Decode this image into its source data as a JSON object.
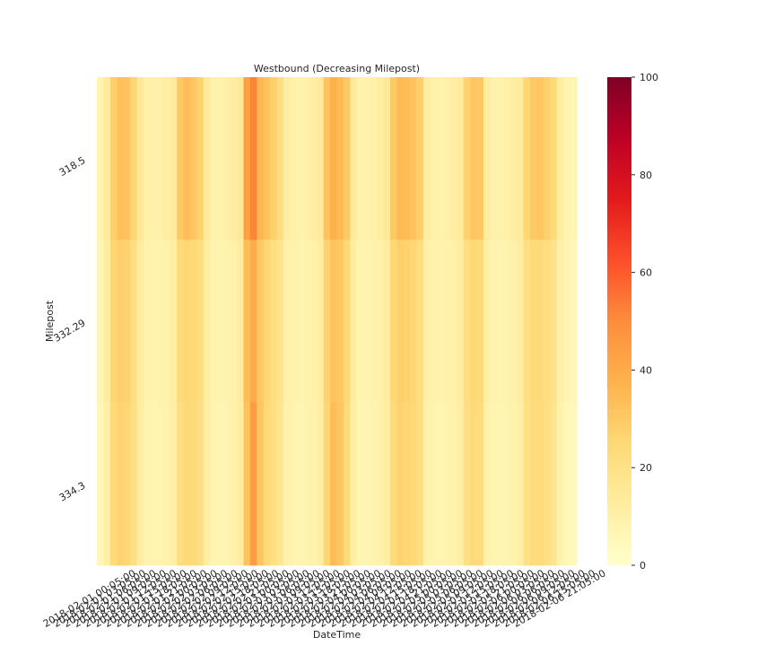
{
  "chart_data": {
    "type": "heatmap",
    "title": "Westbound (Decreasing Milepost)",
    "xlabel": "DateTime",
    "ylabel": "Milepost",
    "rows": [
      "318.5",
      "332.29",
      "334.3"
    ],
    "x_tick_labels": [
      "2018-02-01 00:05:00",
      "2018-02-01 03:05:00",
      "2018-02-01 06:05:00",
      "2018-02-01 09:05:00",
      "2018-02-01 12:05:00",
      "2018-02-01 15:05:00",
      "2018-02-01 18:05:00",
      "2018-02-01 21:05:00",
      "2018-02-02 00:05:00",
      "2018-02-02 03:05:00",
      "2018-02-02 06:05:00",
      "2018-02-02 09:05:00",
      "2018-02-02 12:05:00",
      "2018-02-02 15:05:00",
      "2018-02-02 18:05:00",
      "2018-02-02 21:05:00",
      "2018-02-03 00:05:00",
      "2018-02-03 03:05:00",
      "2018-02-03 06:05:00",
      "2018-02-03 09:05:00",
      "2018-02-03 12:05:00",
      "2018-02-03 15:05:00",
      "2018-02-03 18:05:00",
      "2018-02-03 21:05:00",
      "2018-02-04 00:05:00",
      "2018-02-04 03:05:00",
      "2018-02-04 06:05:00",
      "2018-02-04 09:05:00",
      "2018-02-04 12:05:00",
      "2018-02-04 15:05:00",
      "2018-02-04 18:05:00",
      "2018-02-04 21:05:00",
      "2018-02-05 00:05:00",
      "2018-02-05 03:05:00",
      "2018-02-05 06:05:00",
      "2018-02-05 09:05:00",
      "2018-02-05 12:05:00",
      "2018-02-05 15:05:00",
      "2018-02-05 18:05:00",
      "2018-02-05 21:05:00",
      "2018-02-06 00:05:00",
      "2018-02-06 03:05:00",
      "2018-02-06 06:05:00",
      "2018-02-06 09:05:00",
      "2018-02-06 12:05:00",
      "2018-02-06 15:05:00",
      "2018-02-06 21:05:00"
    ],
    "colorbar": {
      "min": 0,
      "max": 100,
      "ticks": [
        0,
        20,
        40,
        60,
        80,
        100
      ],
      "colormap": "YlOrRd"
    },
    "num_columns": 72,
    "values": [
      [
        8,
        14,
        28,
        33,
        32,
        26,
        15,
        10,
        9,
        10,
        12,
        14,
        30,
        34,
        31,
        27,
        14,
        9,
        9,
        11,
        12,
        15,
        44,
        52,
        36,
        32,
        28,
        22,
        12,
        10,
        9,
        10,
        12,
        14,
        32,
        38,
        35,
        30,
        14,
        9,
        9,
        10,
        12,
        15,
        30,
        35,
        34,
        32,
        28,
        12,
        10,
        9,
        10,
        12,
        14,
        27,
        31,
        30,
        13,
        9,
        9,
        10,
        12,
        14,
        26,
        30,
        31,
        28,
        24,
        12,
        8,
        7
      ],
      [
        7,
        12,
        26,
        28,
        27,
        22,
        13,
        9,
        8,
        9,
        10,
        12,
        24,
        26,
        25,
        22,
        12,
        8,
        8,
        9,
        10,
        13,
        34,
        40,
        30,
        26,
        22,
        18,
        10,
        9,
        8,
        9,
        10,
        12,
        27,
        32,
        30,
        25,
        12,
        8,
        8,
        9,
        10,
        13,
        25,
        28,
        27,
        26,
        22,
        10,
        9,
        8,
        9,
        10,
        12,
        22,
        25,
        24,
        11,
        8,
        8,
        9,
        10,
        12,
        21,
        24,
        24,
        22,
        19,
        10,
        7,
        6
      ],
      [
        6,
        11,
        24,
        27,
        26,
        21,
        12,
        8,
        7,
        8,
        9,
        11,
        22,
        25,
        24,
        21,
        11,
        7,
        7,
        8,
        9,
        12,
        32,
        45,
        31,
        25,
        21,
        17,
        9,
        8,
        7,
        8,
        9,
        11,
        26,
        34,
        31,
        24,
        11,
        7,
        7,
        8,
        9,
        12,
        24,
        27,
        26,
        25,
        21,
        9,
        8,
        7,
        8,
        9,
        11,
        21,
        24,
        23,
        10,
        7,
        7,
        8,
        9,
        11,
        20,
        23,
        23,
        21,
        18,
        9,
        6,
        5
      ]
    ]
  }
}
